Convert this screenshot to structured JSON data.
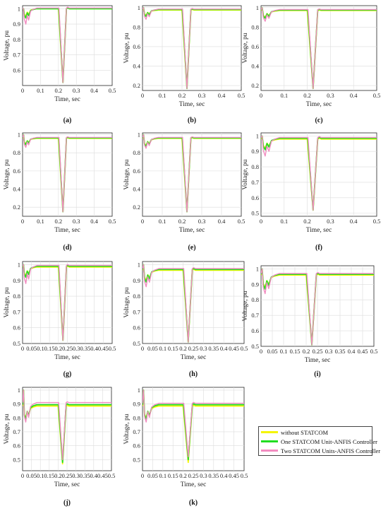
{
  "chart_data": {
    "type": "line",
    "xlabel": "Time, sec",
    "ylabel": "Voltage, pu",
    "legend": {
      "placement": "bottom-right",
      "entries": [
        {
          "name": "without STATCOM",
          "color": "#f5f500"
        },
        {
          "name": "One STATCOM Unit-ANFIS Controller",
          "color": "#22dd22"
        },
        {
          "name": "Two STATCOM Units-ANFIS Controller",
          "color": "#f28cc0"
        }
      ]
    },
    "panels": [
      {
        "label": "(a)",
        "xlim": [
          0,
          0.5
        ],
        "ylim": [
          0.5,
          1.02
        ],
        "xticks": [
          "0",
          "0.1",
          "0.2",
          "0.3",
          "0.4",
          "0.5"
        ],
        "yticks": [
          "0.6",
          "0.7",
          "0.8",
          "0.9",
          "1"
        ],
        "series": [
          {
            "name": "without STATCOM",
            "steady": 1.0,
            "dip_min": 0.52,
            "startup_min": 0.95
          },
          {
            "name": "One STATCOM Unit-ANFIS Controller",
            "steady": 1.0,
            "dip_min": 0.52,
            "startup_min": 0.94
          },
          {
            "name": "Two STATCOM Units-ANFIS Controller",
            "steady": 1.005,
            "dip_min": 0.52,
            "startup_min": 0.9
          }
        ]
      },
      {
        "label": "(b)",
        "xlim": [
          0,
          0.5
        ],
        "ylim": [
          0.15,
          1.02
        ],
        "xticks": [
          "0",
          "0.1",
          "0.2",
          "0.3",
          "0.4",
          "0.5"
        ],
        "yticks": [
          "0.2",
          "0.4",
          "0.6",
          "0.8",
          "1"
        ],
        "series": [
          {
            "name": "without STATCOM",
            "steady": 0.975,
            "dip_min": 0.17,
            "startup_min": 0.92
          },
          {
            "name": "One STATCOM Unit-ANFIS Controller",
            "steady": 0.98,
            "dip_min": 0.17,
            "startup_min": 0.91
          },
          {
            "name": "Two STATCOM Units-ANFIS Controller",
            "steady": 0.985,
            "dip_min": 0.17,
            "startup_min": 0.88
          }
        ]
      },
      {
        "label": "(c)",
        "xlim": [
          0,
          0.5
        ],
        "ylim": [
          0.15,
          1.02
        ],
        "xticks": [
          "0",
          "0.1",
          "0.2",
          "0.3",
          "0.4",
          "0.5"
        ],
        "yticks": [
          "0.2",
          "0.4",
          "0.6",
          "0.8",
          "1"
        ],
        "series": [
          {
            "name": "without STATCOM",
            "steady": 0.97,
            "dip_min": 0.17,
            "startup_min": 0.9
          },
          {
            "name": "One STATCOM Unit-ANFIS Controller",
            "steady": 0.975,
            "dip_min": 0.17,
            "startup_min": 0.89
          },
          {
            "name": "Two STATCOM Units-ANFIS Controller",
            "steady": 0.98,
            "dip_min": 0.17,
            "startup_min": 0.86
          }
        ]
      },
      {
        "label": "(d)",
        "xlim": [
          0,
          0.5
        ],
        "ylim": [
          0.1,
          1.02
        ],
        "xticks": [
          "0",
          "0.1",
          "0.2",
          "0.3",
          "0.4",
          "0.5"
        ],
        "yticks": [
          "0.2",
          "0.4",
          "0.6",
          "0.8",
          "1"
        ],
        "series": [
          {
            "name": "without STATCOM",
            "steady": 0.96,
            "dip_min": 0.15,
            "startup_min": 0.9
          },
          {
            "name": "One STATCOM Unit-ANFIS Controller",
            "steady": 0.965,
            "dip_min": 0.15,
            "startup_min": 0.89
          },
          {
            "name": "Two STATCOM Units-ANFIS Controller",
            "steady": 0.97,
            "dip_min": 0.15,
            "startup_min": 0.86
          }
        ]
      },
      {
        "label": "(e)",
        "xlim": [
          0,
          0.5
        ],
        "ylim": [
          0.1,
          1.02
        ],
        "xticks": [
          "0",
          "0.1",
          "0.2",
          "0.3",
          "0.4",
          "0.5"
        ],
        "yticks": [
          "0.2",
          "0.4",
          "0.6",
          "0.8",
          "1"
        ],
        "series": [
          {
            "name": "without STATCOM",
            "steady": 0.96,
            "dip_min": 0.15,
            "startup_min": 0.88
          },
          {
            "name": "One STATCOM Unit-ANFIS Controller",
            "steady": 0.965,
            "dip_min": 0.15,
            "startup_min": 0.87
          },
          {
            "name": "Two STATCOM Units-ANFIS Controller",
            "steady": 0.97,
            "dip_min": 0.15,
            "startup_min": 0.85
          }
        ]
      },
      {
        "label": "(f)",
        "xlim": [
          0,
          0.5
        ],
        "ylim": [
          0.48,
          1.02
        ],
        "xticks": [
          "0",
          "0.1",
          "0.2",
          "0.3",
          "0.4",
          "0.5"
        ],
        "yticks": [
          "0.5",
          "0.6",
          "0.7",
          "0.8",
          "0.9",
          "1"
        ],
        "series": [
          {
            "name": "without STATCOM",
            "steady": 0.98,
            "dip_min": 0.52,
            "startup_min": 0.92
          },
          {
            "name": "One STATCOM Unit-ANFIS Controller",
            "steady": 0.985,
            "dip_min": 0.52,
            "startup_min": 0.91
          },
          {
            "name": "Two STATCOM Units-ANFIS Controller",
            "steady": 0.99,
            "dip_min": 0.52,
            "startup_min": 0.87
          }
        ]
      },
      {
        "label": "(g)",
        "xlim": [
          0,
          0.5
        ],
        "ylim": [
          0.5,
          1.02
        ],
        "xticks": [
          "0",
          "0.05",
          "0.1",
          "0.15",
          "0.2",
          "0.25",
          "0.3",
          "0.35",
          "0.4",
          "0.45",
          "0.5"
        ],
        "yticks": [
          "0.5",
          "0.6",
          "0.7",
          "0.8",
          "0.9",
          "1"
        ],
        "series": [
          {
            "name": "without STATCOM",
            "steady": 0.985,
            "dip_min": 0.52,
            "startup_min": 0.93
          },
          {
            "name": "One STATCOM Unit-ANFIS Controller",
            "steady": 0.99,
            "dip_min": 0.52,
            "startup_min": 0.92
          },
          {
            "name": "Two STATCOM Units-ANFIS Controller",
            "steady": 0.995,
            "dip_min": 0.52,
            "startup_min": 0.88
          }
        ]
      },
      {
        "label": "(h)",
        "xlim": [
          0,
          0.5
        ],
        "ylim": [
          0.5,
          1.02
        ],
        "xticks": [
          "0",
          "0.05",
          "0.1",
          "0.15",
          "0.2",
          "0.25",
          "0.3",
          "0.35",
          "0.4",
          "0.45",
          "0.5"
        ],
        "yticks": [
          "0.5",
          "0.6",
          "0.7",
          "0.8",
          "0.9",
          "1"
        ],
        "series": [
          {
            "name": "without STATCOM",
            "steady": 0.965,
            "dip_min": 0.51,
            "startup_min": 0.9
          },
          {
            "name": "One STATCOM Unit-ANFIS Controller",
            "steady": 0.97,
            "dip_min": 0.51,
            "startup_min": 0.89
          },
          {
            "name": "Two STATCOM Units-ANFIS Controller",
            "steady": 0.975,
            "dip_min": 0.51,
            "startup_min": 0.86
          }
        ]
      },
      {
        "label": "(i)",
        "xlim": [
          0,
          0.5
        ],
        "ylim": [
          0.5,
          1.02
        ],
        "xticks": [
          "0",
          "0.05",
          "0.1",
          "0.15",
          "0.2",
          "0.25",
          "0.3",
          "0.35",
          "0.4",
          "0.45",
          "0.5"
        ],
        "yticks": [
          "0.5",
          "0.6",
          "0.7",
          "0.8",
          "0.9",
          "1"
        ],
        "series": [
          {
            "name": "without STATCOM",
            "steady": 0.96,
            "dip_min": 0.51,
            "startup_min": 0.88
          },
          {
            "name": "One STATCOM Unit-ANFIS Controller",
            "steady": 0.965,
            "dip_min": 0.51,
            "startup_min": 0.87
          },
          {
            "name": "Two STATCOM Units-ANFIS Controller",
            "steady": 0.97,
            "dip_min": 0.51,
            "startup_min": 0.84
          }
        ]
      },
      {
        "label": "(j)",
        "xlim": [
          0,
          0.5
        ],
        "ylim": [
          0.42,
          1.02
        ],
        "xticks": [
          "0",
          "0.05",
          "0.1",
          "0.15",
          "0.2",
          "0.25",
          "0.3",
          "0.35",
          "0.4",
          "0.45",
          "0.5"
        ],
        "yticks": [
          "0.5",
          "0.6",
          "0.7",
          "0.8",
          "0.9",
          "1"
        ],
        "series": [
          {
            "name": "without STATCOM",
            "steady": 0.885,
            "dip_min": 0.47,
            "startup_min": 0.8
          },
          {
            "name": "One STATCOM Unit-ANFIS Controller",
            "steady": 0.895,
            "dip_min": 0.48,
            "startup_min": 0.79
          },
          {
            "name": "Two STATCOM Units-ANFIS Controller",
            "steady": 0.91,
            "dip_min": 0.5,
            "startup_min": 0.77
          }
        ]
      },
      {
        "label": "(k)",
        "xlim": [
          0,
          0.5
        ],
        "ylim": [
          0.42,
          1.02
        ],
        "xticks": [
          "0",
          "0.05",
          "0.1",
          "0.15",
          "0.2",
          "0.25",
          "0.3",
          "0.35",
          "0.4",
          "0.45",
          "0.5"
        ],
        "yticks": [
          "0.5",
          "0.6",
          "0.7",
          "0.8",
          "0.9",
          "1"
        ],
        "series": [
          {
            "name": "without STATCOM",
            "steady": 0.885,
            "dip_min": 0.48,
            "startup_min": 0.8
          },
          {
            "name": "One STATCOM Unit-ANFIS Controller",
            "steady": 0.895,
            "dip_min": 0.5,
            "startup_min": 0.79
          },
          {
            "name": "Two STATCOM Units-ANFIS Controller",
            "steady": 0.905,
            "dip_min": 0.52,
            "startup_min": 0.77
          }
        ]
      }
    ]
  }
}
